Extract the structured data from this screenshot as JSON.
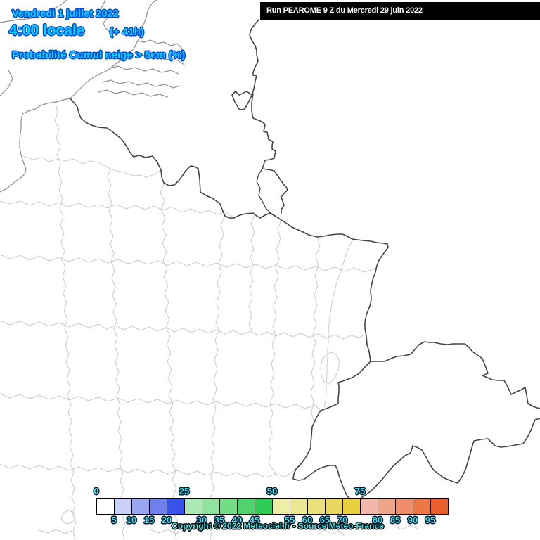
{
  "title_block": {
    "date": "Vendredi 1 juillet 2022",
    "time": "4:00 locale",
    "forecast_offset": "(+ 41h)",
    "parameter": "Probabilité Cumul neige > 5cm (%)"
  },
  "run_bar": {
    "text": "Run PEAROME 9 Z du Mercredi 29 juin 2022"
  },
  "footer": {
    "copyright": "Copyright © 2022 Meteociel.fr - Source Météo-France"
  },
  "colors": {
    "header_text": "#00D9FF",
    "header_outline": "#0040DD",
    "legend_text": "#45E0E8",
    "legend_outline": "#001A33",
    "run_bar_bg": "#000000",
    "run_bar_text": "#FFFFFF",
    "map_department_border": "#CBCBCB",
    "map_country_border": "#444444",
    "map_coast": "#8F8F8F"
  },
  "legend": {
    "unit": "%",
    "scale_min": 0,
    "scale_max": 100,
    "step": 5,
    "boxes": [
      {
        "from": 0,
        "to": 5,
        "color": "#FFFFFF"
      },
      {
        "from": 5,
        "to": 10,
        "color": "#C8D0F8"
      },
      {
        "from": 10,
        "to": 15,
        "color": "#9AA6F2"
      },
      {
        "from": 15,
        "to": 20,
        "color": "#6F80EA"
      },
      {
        "from": 20,
        "to": 25,
        "color": "#3A52EC"
      },
      {
        "from": 25,
        "to": 30,
        "color": "#ABEAB4"
      },
      {
        "from": 30,
        "to": 35,
        "color": "#90E49E"
      },
      {
        "from": 35,
        "to": 40,
        "color": "#72DC86"
      },
      {
        "from": 40,
        "to": 45,
        "color": "#50D26C"
      },
      {
        "from": 45,
        "to": 50,
        "color": "#2ECB55"
      },
      {
        "from": 50,
        "to": 55,
        "color": "#EFEEA6"
      },
      {
        "from": 55,
        "to": 60,
        "color": "#ECE793"
      },
      {
        "from": 60,
        "to": 65,
        "color": "#E9DF7D"
      },
      {
        "from": 65,
        "to": 70,
        "color": "#E7D65F"
      },
      {
        "from": 70,
        "to": 75,
        "color": "#E8CF3E"
      },
      {
        "from": 75,
        "to": 80,
        "color": "#F2B7A9"
      },
      {
        "from": 80,
        "to": 85,
        "color": "#F0A489"
      },
      {
        "from": 85,
        "to": 90,
        "color": "#EE8E68"
      },
      {
        "from": 90,
        "to": 95,
        "color": "#EC7848"
      },
      {
        "from": 95,
        "to": 100,
        "color": "#E95F2C"
      }
    ],
    "top_labels": [
      {
        "text": "0",
        "boundary": 0
      },
      {
        "text": "25",
        "boundary": 5
      },
      {
        "text": "50",
        "boundary": 10
      },
      {
        "text": "75",
        "boundary": 15
      }
    ],
    "bottom_labels": [
      {
        "text": "5",
        "boundary": 1
      },
      {
        "text": "10",
        "boundary": 2
      },
      {
        "text": "15",
        "boundary": 3
      },
      {
        "text": "20",
        "boundary": 4
      },
      {
        "text": "30",
        "boundary": 6
      },
      {
        "text": "35",
        "boundary": 7
      },
      {
        "text": "40",
        "boundary": 8
      },
      {
        "text": "45",
        "boundary": 9
      },
      {
        "text": "55",
        "boundary": 11
      },
      {
        "text": "60",
        "boundary": 12
      },
      {
        "text": "65",
        "boundary": 13
      },
      {
        "text": "70",
        "boundary": 14
      },
      {
        "text": "80",
        "boundary": 16
      },
      {
        "text": "85",
        "boundary": 17
      },
      {
        "text": "90",
        "boundary": 18
      },
      {
        "text": "95",
        "boundary": 19
      }
    ]
  }
}
